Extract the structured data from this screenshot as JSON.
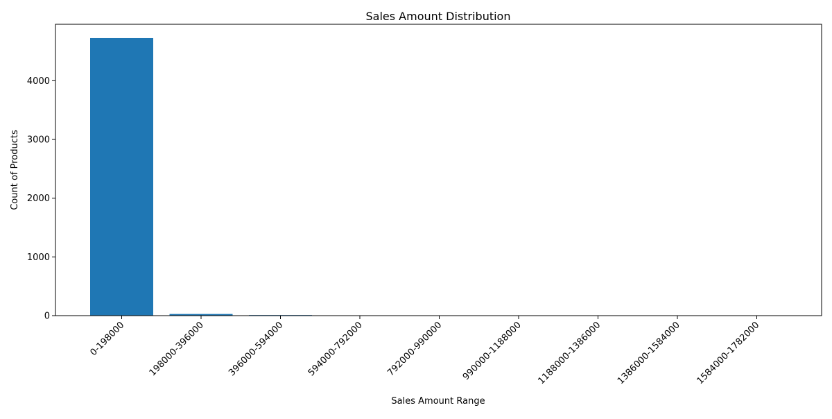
{
  "chart_data": {
    "type": "bar",
    "title": "Sales Amount Distribution",
    "xlabel": "Sales Amount Range",
    "ylabel": "Count of Products",
    "categories": [
      "0-198000",
      "198000-396000",
      "396000-594000",
      "594000-792000",
      "792000-990000",
      "990000-1188000",
      "1188000-1386000",
      "1386000-1584000",
      "1584000-1782000"
    ],
    "values": [
      4725,
      28,
      10,
      3,
      2,
      1,
      1,
      1,
      1
    ],
    "ylim": [
      0,
      4961
    ],
    "yticks": [
      0,
      1000,
      2000,
      3000,
      4000
    ],
    "grid": false,
    "bar_color": "#1f77b4"
  }
}
